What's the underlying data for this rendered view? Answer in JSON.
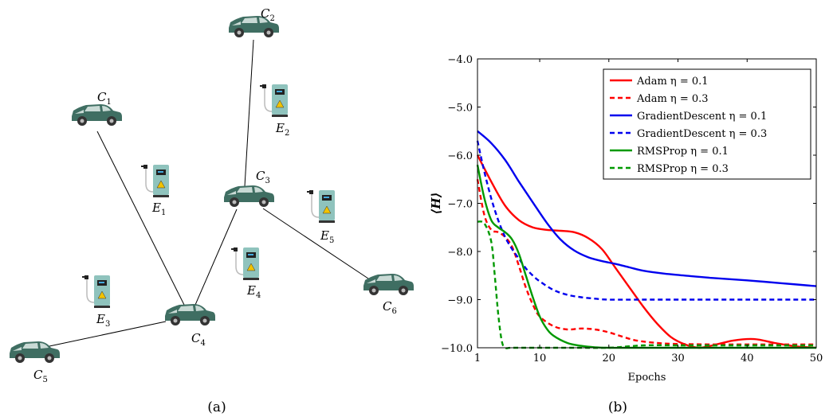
{
  "panel_a": {
    "caption": "(a)",
    "cars": [
      {
        "name": "C",
        "sub": "1"
      },
      {
        "name": "C",
        "sub": "2"
      },
      {
        "name": "C",
        "sub": "3"
      },
      {
        "name": "C",
        "sub": "4"
      },
      {
        "name": "C",
        "sub": "5"
      },
      {
        "name": "C",
        "sub": "6"
      }
    ],
    "chargers": [
      {
        "name": "E",
        "sub": "1"
      },
      {
        "name": "E",
        "sub": "2"
      },
      {
        "name": "E",
        "sub": "3"
      },
      {
        "name": "E",
        "sub": "4"
      },
      {
        "name": "E",
        "sub": "5"
      }
    ],
    "edges": [
      [
        "C1",
        "C4"
      ],
      [
        "C2",
        "C3"
      ],
      [
        "C3",
        "C4"
      ],
      [
        "C3",
        "C6"
      ],
      [
        "C4",
        "C5"
      ]
    ],
    "colors": {
      "car_body": "#3f6e62",
      "charger": "#8fc3bd"
    }
  },
  "panel_b": {
    "caption": "(b)",
    "chart_data": {
      "type": "line",
      "xlabel": "Epochs",
      "ylabel": "⟨H⟩",
      "xlim": [
        1,
        50
      ],
      "ylim": [
        -10.0,
        -4.0
      ],
      "xticks": [
        1,
        10,
        20,
        30,
        40,
        50
      ],
      "yticks": [
        -4.0,
        -5.0,
        -6.0,
        -7.0,
        -8.0,
        -9.0,
        -10.0
      ],
      "ytick_labels": [
        "−4.0",
        "−5.0",
        "−6.0",
        "−7.0",
        "−8.0",
        "−9.0",
        "−10.0"
      ],
      "legend_position": "top-right",
      "series": [
        {
          "name": "Adam η = 0.1",
          "color": "#ff0000",
          "dash": false,
          "x": [
            1,
            3,
            5,
            7,
            9,
            11,
            13,
            15,
            17,
            19,
            21,
            23,
            25,
            27,
            29,
            31,
            33,
            35,
            38,
            41,
            44,
            47,
            50
          ],
          "y": [
            -6.0,
            -6.55,
            -7.05,
            -7.35,
            -7.5,
            -7.55,
            -7.57,
            -7.6,
            -7.72,
            -7.95,
            -8.35,
            -8.75,
            -9.15,
            -9.5,
            -9.78,
            -9.93,
            -10.0,
            -9.95,
            -9.85,
            -9.82,
            -9.9,
            -9.97,
            -10.0
          ]
        },
        {
          "name": "Adam η = 0.3",
          "color": "#ff0000",
          "dash": true,
          "x": [
            1,
            2,
            3,
            4,
            5,
            6,
            7,
            8,
            9,
            10,
            12,
            14,
            16,
            18,
            20,
            22,
            24,
            27,
            30,
            35,
            40,
            45,
            50
          ],
          "y": [
            -6.5,
            -7.25,
            -7.55,
            -7.6,
            -7.7,
            -7.9,
            -8.3,
            -8.75,
            -9.1,
            -9.35,
            -9.55,
            -9.62,
            -9.6,
            -9.62,
            -9.68,
            -9.77,
            -9.85,
            -9.9,
            -9.92,
            -9.93,
            -9.93,
            -9.93,
            -9.93
          ]
        },
        {
          "name": "GradientDescent η = 0.1",
          "color": "#0000ee",
          "dash": false,
          "x": [
            1,
            3,
            5,
            7,
            9,
            11,
            13,
            15,
            17,
            19,
            21,
            23,
            25,
            28,
            31,
            35,
            40,
            45,
            50
          ],
          "y": [
            -5.5,
            -5.75,
            -6.1,
            -6.55,
            -6.98,
            -7.4,
            -7.75,
            -7.98,
            -8.12,
            -8.2,
            -8.26,
            -8.33,
            -8.4,
            -8.46,
            -8.5,
            -8.55,
            -8.6,
            -8.66,
            -8.72
          ]
        },
        {
          "name": "GradientDescent η = 0.3",
          "color": "#0000ee",
          "dash": true,
          "x": [
            1,
            2,
            3,
            4,
            5,
            6,
            7,
            8,
            9,
            10,
            12,
            14,
            16,
            18,
            20,
            25,
            30,
            40,
            50
          ],
          "y": [
            -5.7,
            -6.35,
            -6.9,
            -7.35,
            -7.7,
            -7.95,
            -8.15,
            -8.35,
            -8.5,
            -8.62,
            -8.8,
            -8.9,
            -8.95,
            -8.98,
            -9.0,
            -9.0,
            -9.0,
            -9.0,
            -9.0
          ]
        },
        {
          "name": "RMSProp η = 0.1",
          "color": "#009900",
          "dash": false,
          "x": [
            1,
            2,
            3,
            4,
            5,
            6,
            7,
            8,
            9,
            10,
            11,
            12,
            14,
            16,
            18,
            20,
            22,
            25,
            30,
            40,
            50
          ],
          "y": [
            -6.2,
            -6.9,
            -7.35,
            -7.5,
            -7.6,
            -7.75,
            -8.05,
            -8.5,
            -8.95,
            -9.35,
            -9.6,
            -9.75,
            -9.9,
            -9.96,
            -9.99,
            -10.0,
            -10.0,
            -10.0,
            -10.0,
            -10.0,
            -10.0
          ]
        },
        {
          "name": "RMSProp η = 0.3",
          "color": "#009900",
          "dash": true,
          "x": [
            1,
            2,
            3,
            3.5,
            4,
            4.5,
            5,
            6,
            10,
            15,
            20,
            25,
            30,
            35,
            40,
            45,
            50
          ],
          "y": [
            -7.38,
            -7.42,
            -7.8,
            -8.5,
            -9.3,
            -9.85,
            -10.0,
            -10.0,
            -10.0,
            -10.0,
            -10.0,
            -9.95,
            -9.95,
            -9.95,
            -9.95,
            -9.95,
            -9.95
          ]
        }
      ]
    }
  }
}
